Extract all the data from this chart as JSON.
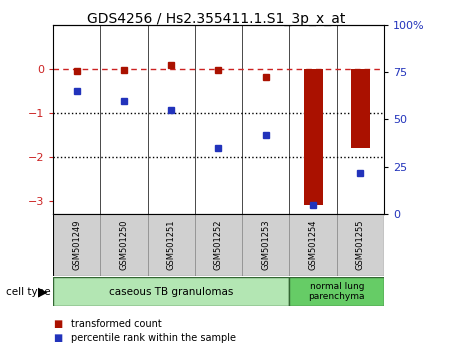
{
  "title": "GDS4256 / Hs2.355411.1.S1_3p_x_at",
  "samples": [
    "GSM501249",
    "GSM501250",
    "GSM501251",
    "GSM501252",
    "GSM501253",
    "GSM501254",
    "GSM501255"
  ],
  "red_values": [
    -0.05,
    -0.02,
    0.08,
    -0.03,
    -0.18,
    -3.1,
    -1.8
  ],
  "blue_values": [
    65,
    60,
    55,
    35,
    42,
    5,
    22
  ],
  "ylim_left": [
    -3.3,
    1.0
  ],
  "ylim_right": [
    0,
    100
  ],
  "cell_types": [
    {
      "label": "caseous TB granulomas",
      "n_samples": 5,
      "color": "#b3e6b3"
    },
    {
      "label": "normal lung\nparenchyma",
      "n_samples": 2,
      "color": "#66cc66"
    }
  ],
  "red_color": "#aa1100",
  "blue_color": "#2233bb",
  "dashed_line_color": "#cc2222",
  "dotted_line_color": "#000000",
  "bg_color": "#ffffff",
  "tick_label_color_left": "#cc2222",
  "tick_label_color_right": "#2233bb",
  "bar_width": 0.4,
  "legend_red": "transformed count",
  "legend_blue": "percentile rank within the sample",
  "cell_type_label": "cell type",
  "sample_box_color": "#d0d0d0",
  "sample_box_edge": "#888888"
}
